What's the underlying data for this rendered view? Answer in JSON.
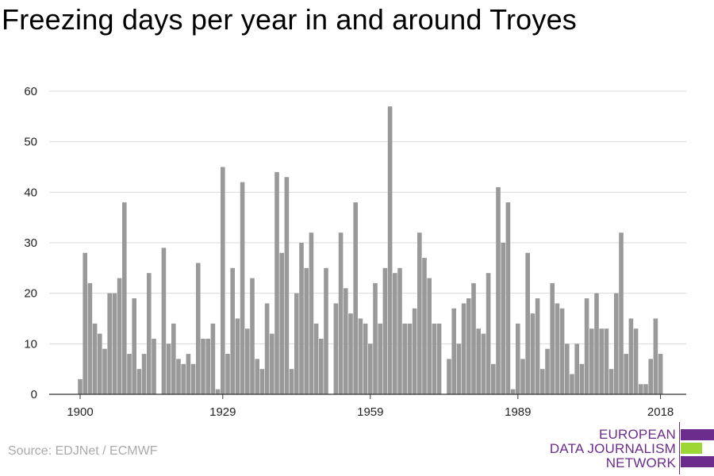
{
  "chart_data": {
    "type": "bar",
    "title": "Freezing days per year in and around Troyes",
    "xlabel": "",
    "ylabel": "",
    "ylim": [
      0,
      60
    ],
    "yticks": [
      0,
      10,
      20,
      30,
      40,
      50,
      60
    ],
    "xticks": [
      1900,
      1929,
      1959,
      1989,
      2018
    ],
    "x_start": 1900,
    "grid": true,
    "bar_color": "#999999",
    "values": [
      3,
      28,
      22,
      14,
      12,
      9,
      20,
      20,
      23,
      38,
      8,
      19,
      5,
      8,
      24,
      11,
      0,
      29,
      10,
      14,
      7,
      6,
      8,
      6,
      26,
      11,
      11,
      14,
      1,
      45,
      8,
      25,
      15,
      42,
      13,
      23,
      7,
      5,
      18,
      12,
      44,
      28,
      43,
      5,
      20,
      30,
      25,
      32,
      14,
      11,
      25,
      0,
      18,
      32,
      21,
      16,
      38,
      15,
      14,
      10,
      22,
      14,
      25,
      57,
      24,
      25,
      14,
      14,
      17,
      32,
      27,
      23,
      14,
      14,
      0,
      7,
      17,
      10,
      18,
      19,
      22,
      13,
      12,
      24,
      6,
      41,
      30,
      38,
      1,
      14,
      7,
      28,
      16,
      19,
      5,
      9,
      22,
      18,
      17,
      10,
      4,
      10,
      6,
      19,
      13,
      20,
      13,
      13,
      5,
      20,
      32,
      8,
      15,
      13,
      2,
      2,
      7,
      15,
      8
    ]
  },
  "source_text": "Source: EDJNet / ECMWF",
  "logo": {
    "line1": "EUROPEAN",
    "line2": "DATA JOURNALISM",
    "line3": "NETWORK",
    "primary_color": "#6c2c8c",
    "accent_color": "#9ed636"
  }
}
